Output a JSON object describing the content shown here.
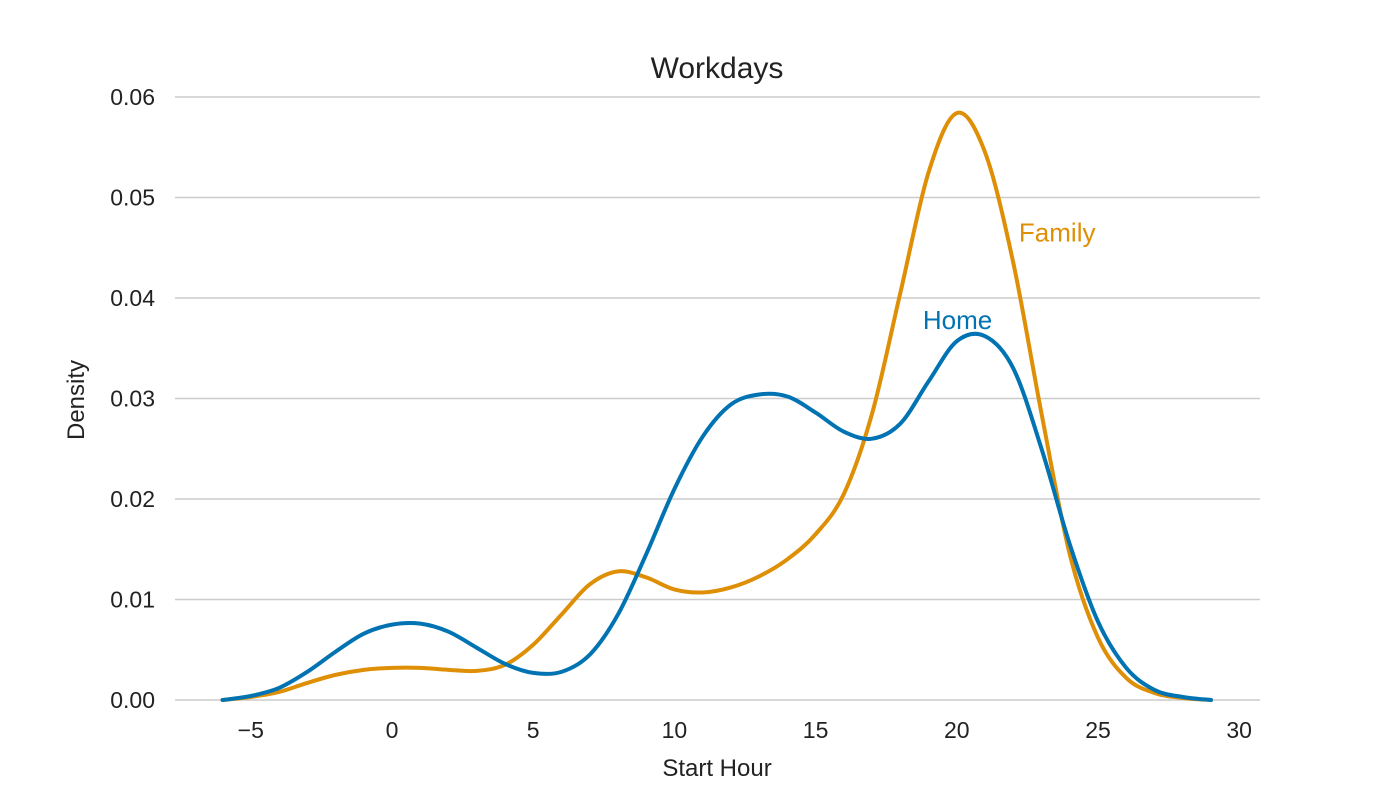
{
  "chart_data": {
    "type": "line",
    "title": "Workdays",
    "xlabel": "Start Hour",
    "ylabel": "Density",
    "xlim": [
      -8,
      31
    ],
    "ylim": [
      0,
      0.06
    ],
    "x_ticks": [
      -5,
      0,
      5,
      10,
      15,
      20,
      25,
      30
    ],
    "x_tick_labels": [
      "−5",
      "0",
      "5",
      "10",
      "15",
      "20",
      "25",
      "30"
    ],
    "y_ticks": [
      0,
      0.01,
      0.02,
      0.03,
      0.04,
      0.05,
      0.06
    ],
    "y_tick_labels": [
      "0.00",
      "0.01",
      "0.02",
      "0.03",
      "0.04",
      "0.05",
      "0.06"
    ],
    "grid": "horizontal",
    "legend": "inline labels near peaks",
    "series": [
      {
        "name": "Family",
        "color": "#DE8F05",
        "label_at": [
          22.2,
          0.0465
        ],
        "points": [
          [
            -6,
            0.0
          ],
          [
            -5,
            0.0003
          ],
          [
            -4,
            0.0008
          ],
          [
            -3,
            0.0017
          ],
          [
            -2,
            0.0025
          ],
          [
            -1,
            0.003
          ],
          [
            0,
            0.0032
          ],
          [
            1,
            0.0032
          ],
          [
            2,
            0.003
          ],
          [
            3,
            0.0029
          ],
          [
            4,
            0.0035
          ],
          [
            5,
            0.0055
          ],
          [
            6,
            0.0085
          ],
          [
            7,
            0.0115
          ],
          [
            8,
            0.0128
          ],
          [
            9,
            0.0122
          ],
          [
            10,
            0.011
          ],
          [
            11,
            0.0107
          ],
          [
            12,
            0.0112
          ],
          [
            13,
            0.0123
          ],
          [
            14,
            0.014
          ],
          [
            15,
            0.0165
          ],
          [
            16,
            0.0205
          ],
          [
            17,
            0.0285
          ],
          [
            18,
            0.0405
          ],
          [
            19,
            0.0525
          ],
          [
            20,
            0.0584
          ],
          [
            21,
            0.0545
          ],
          [
            22,
            0.0435
          ],
          [
            23,
            0.0285
          ],
          [
            24,
            0.0145
          ],
          [
            25,
            0.0062
          ],
          [
            26,
            0.0022
          ],
          [
            27,
            0.0007
          ],
          [
            28,
            0.0002
          ],
          [
            29,
            0.0
          ]
        ]
      },
      {
        "name": "Home",
        "color": "#0173B2",
        "label_at": [
          18.8,
          0.0378
        ],
        "points": [
          [
            -6,
            0.0
          ],
          [
            -5,
            0.0004
          ],
          [
            -4,
            0.0012
          ],
          [
            -3,
            0.0028
          ],
          [
            -2,
            0.0048
          ],
          [
            -1,
            0.0066
          ],
          [
            0,
            0.0075
          ],
          [
            1,
            0.0076
          ],
          [
            2,
            0.0068
          ],
          [
            3,
            0.0052
          ],
          [
            4,
            0.0036
          ],
          [
            5,
            0.0027
          ],
          [
            6,
            0.0028
          ],
          [
            7,
            0.0045
          ],
          [
            8,
            0.0085
          ],
          [
            9,
            0.0145
          ],
          [
            10,
            0.021
          ],
          [
            11,
            0.0262
          ],
          [
            12,
            0.0294
          ],
          [
            13,
            0.0304
          ],
          [
            14,
            0.0302
          ],
          [
            15,
            0.0286
          ],
          [
            16,
            0.0267
          ],
          [
            17,
            0.026
          ],
          [
            18,
            0.0275
          ],
          [
            19,
            0.0317
          ],
          [
            20,
            0.0357
          ],
          [
            21,
            0.0362
          ],
          [
            22,
            0.033
          ],
          [
            23,
            0.025
          ],
          [
            24,
            0.0155
          ],
          [
            25,
            0.0078
          ],
          [
            26,
            0.0032
          ],
          [
            27,
            0.001
          ],
          [
            28,
            0.0003
          ],
          [
            29,
            0.0
          ]
        ]
      }
    ]
  }
}
